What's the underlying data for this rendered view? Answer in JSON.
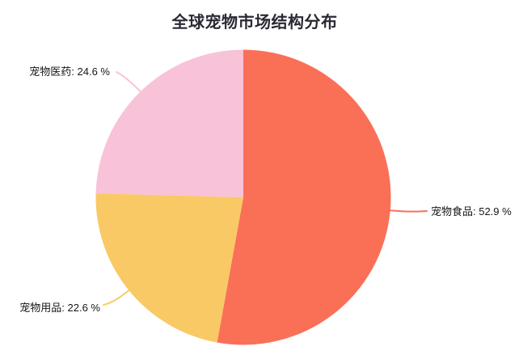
{
  "page": {
    "background_color": "#ffffff",
    "title_color": "#2a2a35",
    "label_text_color": "#161616"
  },
  "chart_data": {
    "type": "pie",
    "title": "全球宠物市场结构分布",
    "legend_position": "none",
    "start_angle_deg": 0,
    "direction": "clockwise",
    "unit": "%",
    "slices": [
      {
        "id": "pet-food",
        "name": "宠物食品",
        "value": 52.9,
        "color": "#FA7057",
        "label": "宠物食品: 52.9 %"
      },
      {
        "id": "pet-supplies",
        "name": "宠物用品",
        "value": 22.6,
        "color": "#F9C965",
        "label": "宠物用品: 22.6 %"
      },
      {
        "id": "pet-medicine",
        "name": "宠物医药",
        "value": 24.6,
        "color": "#F8C2D8",
        "label": "宠物医药: 24.6 %"
      }
    ]
  }
}
